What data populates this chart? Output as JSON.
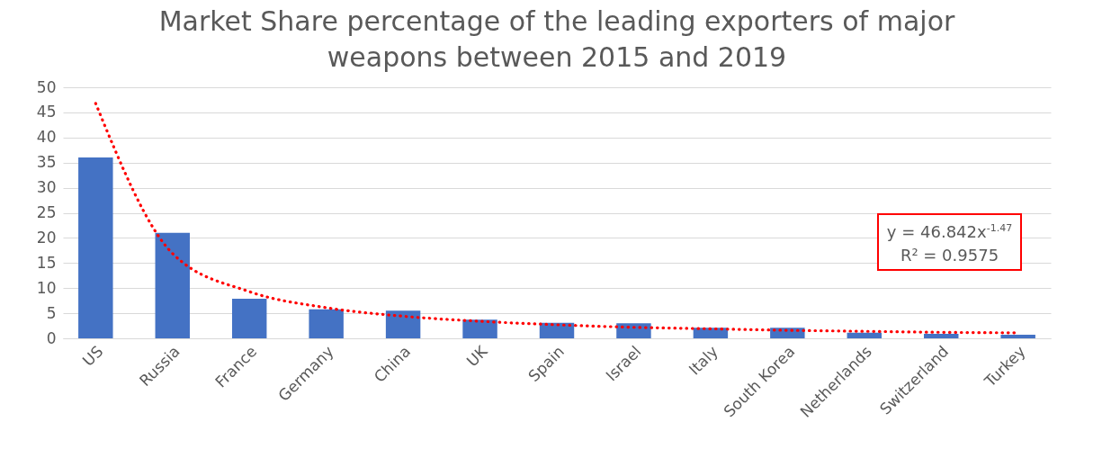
{
  "chart_data": {
    "type": "bar",
    "title": [
      "Market Share  percentage of the leading exporters of major",
      "weapons between 2015 and 2019"
    ],
    "categories": [
      "US",
      "Russia",
      "France",
      "Germany",
      "China",
      "UK",
      "Spain",
      "Israel",
      "Italy",
      "South Korea",
      "Netherlands",
      "Switzerland",
      "Turkey"
    ],
    "series": [
      {
        "color": "#4472c4",
        "values": [
          36,
          21,
          7.9,
          5.8,
          5.5,
          3.7,
          3.1,
          3.0,
          2.1,
          2.1,
          1.1,
          0.9,
          0.7
        ]
      },
      {
        "type": "line",
        "color": "#ff0000",
        "line_style": "dotted",
        "x": [
          "US",
          "Russia",
          "France",
          "Germany",
          "China",
          "UK",
          "Spain",
          "Israel",
          "Italy",
          "South Korea",
          "Netherlands",
          "Switzerland",
          "Turkey"
        ],
        "values": [
          46.8,
          16.9,
          9.3,
          6.1,
          4.4,
          3.4,
          2.7,
          2.2,
          1.9,
          1.6,
          1.4,
          1.2,
          1.1
        ]
      }
    ],
    "ylim": [
      0,
      50
    ],
    "yticks": [
      0,
      5,
      10,
      15,
      20,
      25,
      30,
      35,
      40,
      45,
      50
    ],
    "grid": "y",
    "annotations": [
      "y = 46.842x$^{-1.47}$",
      "R² = 0.9575"
    ]
  }
}
